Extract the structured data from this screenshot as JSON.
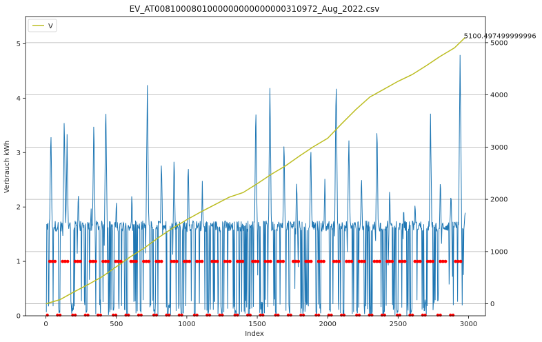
{
  "chart_data": {
    "type": "line",
    "title": "EV_AT0081000801000000000000000310972_Aug_2022.csv",
    "xlabel": "Index",
    "ylabel": "Verbrauch kWh",
    "xlim": [
      -145,
      3120
    ],
    "ylim": [
      0,
      5.5
    ],
    "y2lim": [
      -230,
      5500
    ],
    "x_ticks": [
      0,
      500,
      1000,
      1500,
      2000,
      2500,
      3000
    ],
    "y_ticks": [
      0,
      1,
      2,
      3,
      4,
      5
    ],
    "y2_ticks": [
      0,
      1000,
      2000,
      3000,
      4000,
      5000
    ],
    "grid": "right-axis horizontal",
    "legend": {
      "position": "top-left",
      "entries": [
        "V"
      ]
    },
    "colors": {
      "consumption": "#1f77b4",
      "cumulative": "#bcbd22",
      "markers": "#ff0000"
    },
    "series": [
      {
        "axis": "left",
        "color": "#1f77b4",
        "x_range": [
          0,
          2976
        ],
        "values_summary": "15-minute consumption, oscillating between ~0 and ~1.7 kWh with peaks",
        "peaks": [
          {
            "x": 35,
            "y": 3.45
          },
          {
            "x": 130,
            "y": 3.65
          },
          {
            "x": 150,
            "y": 3.2
          },
          {
            "x": 230,
            "y": 2.28
          },
          {
            "x": 320,
            "y": 2.0
          },
          {
            "x": 340,
            "y": 3.55
          },
          {
            "x": 425,
            "y": 3.85
          },
          {
            "x": 500,
            "y": 2.1
          },
          {
            "x": 610,
            "y": 2.25
          },
          {
            "x": 720,
            "y": 4.17
          },
          {
            "x": 820,
            "y": 2.9
          },
          {
            "x": 910,
            "y": 2.95
          },
          {
            "x": 1010,
            "y": 2.85
          },
          {
            "x": 1110,
            "y": 2.4
          },
          {
            "x": 1490,
            "y": 3.82
          },
          {
            "x": 1590,
            "y": 4.17
          },
          {
            "x": 1690,
            "y": 3.2
          },
          {
            "x": 1780,
            "y": 2.5
          },
          {
            "x": 1880,
            "y": 3.1
          },
          {
            "x": 1980,
            "y": 2.5
          },
          {
            "x": 2060,
            "y": 4.3
          },
          {
            "x": 2150,
            "y": 3.3
          },
          {
            "x": 2240,
            "y": 2.6
          },
          {
            "x": 2350,
            "y": 3.5
          },
          {
            "x": 2440,
            "y": 2.3
          },
          {
            "x": 2540,
            "y": 2.0
          },
          {
            "x": 2620,
            "y": 2.1
          },
          {
            "x": 2730,
            "y": 3.6
          },
          {
            "x": 2800,
            "y": 2.5
          },
          {
            "x": 2875,
            "y": 2.3
          },
          {
            "x": 2940,
            "y": 4.77
          },
          {
            "x": 2975,
            "y": 1.95
          }
        ]
      },
      {
        "name": "V",
        "axis": "right",
        "color": "#bcbd22",
        "x": [
          0,
          100,
          200,
          300,
          400,
          500,
          600,
          700,
          800,
          900,
          1000,
          1100,
          1200,
          1300,
          1400,
          1500,
          1600,
          1700,
          1800,
          1900,
          2000,
          2100,
          2200,
          2300,
          2400,
          2500,
          2600,
          2700,
          2800,
          2900,
          2976
        ],
        "values": [
          0,
          80,
          230,
          370,
          520,
          710,
          900,
          1070,
          1270,
          1450,
          1610,
          1760,
          1900,
          2040,
          2130,
          2300,
          2480,
          2640,
          2830,
          3010,
          3170,
          3450,
          3720,
          3960,
          4110,
          4260,
          4390,
          4560,
          4740,
          4900,
          5100.497499999996
        ]
      },
      {
        "axis": "left",
        "type": "scatter",
        "color": "#ff0000",
        "description": "markers at 0 and 1 along the index range"
      }
    ],
    "annotations": [
      {
        "text": "5100.497499999996",
        "x": 2976,
        "y2": 5100.497499999996
      }
    ]
  }
}
